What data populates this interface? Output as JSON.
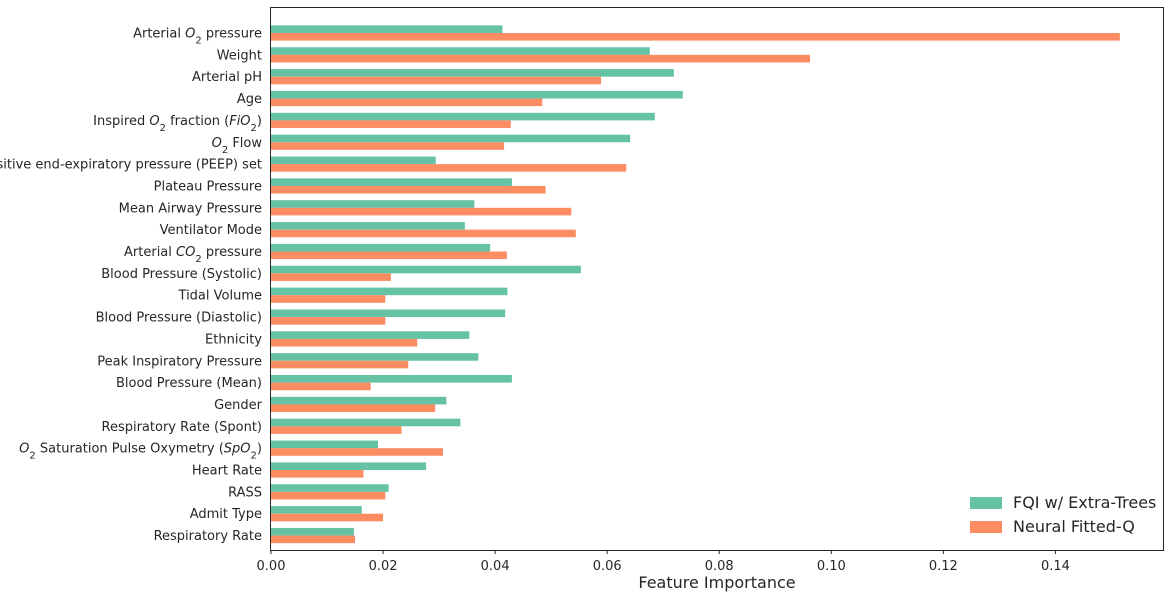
{
  "chart_data": {
    "type": "bar",
    "orientation": "horizontal",
    "title": "",
    "xlabel": "Feature Importance",
    "ylabel": "",
    "xlim": [
      0,
      0.16
    ],
    "xticks": [
      0.0,
      0.02,
      0.04,
      0.06,
      0.08,
      0.1,
      0.12,
      0.14
    ],
    "xtick_labels": [
      "0.00",
      "0.02",
      "0.04",
      "0.06",
      "0.08",
      "0.10",
      "0.12",
      "0.14"
    ],
    "grid": false,
    "legend_position": "lower-right",
    "categories": [
      {
        "pre": "Arterial ",
        "math": "O",
        "sub": "2",
        "post": " pressure"
      },
      {
        "pre": "Weight"
      },
      {
        "pre": "Arterial pH"
      },
      {
        "pre": "Age"
      },
      {
        "pre": "Inspired ",
        "math": "O",
        "sub": "2",
        "post": " fraction (",
        "math2": "FiO",
        "sub2": "2",
        "post2": ")"
      },
      {
        "pre": "",
        "math": "O",
        "sub": "2",
        "post": " Flow"
      },
      {
        "pre": "Positive end-expiratory pressure (PEEP) set"
      },
      {
        "pre": "Plateau Pressure"
      },
      {
        "pre": "Mean Airway Pressure"
      },
      {
        "pre": "Ventilator Mode"
      },
      {
        "pre": "Arterial ",
        "math": "CO",
        "sub": "2",
        "post": " pressure"
      },
      {
        "pre": "Blood Pressure (Systolic)"
      },
      {
        "pre": "Tidal Volume"
      },
      {
        "pre": "Blood Pressure (Diastolic)"
      },
      {
        "pre": "Ethnicity"
      },
      {
        "pre": "Peak Inspiratory Pressure"
      },
      {
        "pre": "Blood Pressure (Mean)"
      },
      {
        "pre": "Gender"
      },
      {
        "pre": "Respiratory Rate (Spont)"
      },
      {
        "pre": "",
        "math": "O",
        "sub": "2",
        "post": " Saturation Pulse Oxymetry (",
        "math2": "SpO",
        "sub2": "2",
        "post2": ")"
      },
      {
        "pre": "Heart Rate"
      },
      {
        "pre": "RASS"
      },
      {
        "pre": "Admit Type"
      },
      {
        "pre": "Respiratory Rate"
      }
    ],
    "series": [
      {
        "name": "FQI w/ Extra-Trees",
        "color": "#66c2a5",
        "values": [
          0.0413,
          0.0676,
          0.0719,
          0.0735,
          0.0685,
          0.0641,
          0.0294,
          0.043,
          0.0363,
          0.0346,
          0.0391,
          0.0553,
          0.0422,
          0.0418,
          0.0354,
          0.037,
          0.043,
          0.0313,
          0.0338,
          0.0191,
          0.0277,
          0.021,
          0.0162,
          0.0148
        ]
      },
      {
        "name": "Neural Fitted-Q",
        "color": "#fc8d62",
        "values": [
          0.1515,
          0.0962,
          0.0589,
          0.0484,
          0.0428,
          0.0416,
          0.0634,
          0.049,
          0.0536,
          0.0544,
          0.0421,
          0.0214,
          0.0204,
          0.0204,
          0.0261,
          0.0245,
          0.0178,
          0.0293,
          0.0233,
          0.0307,
          0.0165,
          0.0204,
          0.02,
          0.015
        ]
      }
    ]
  }
}
